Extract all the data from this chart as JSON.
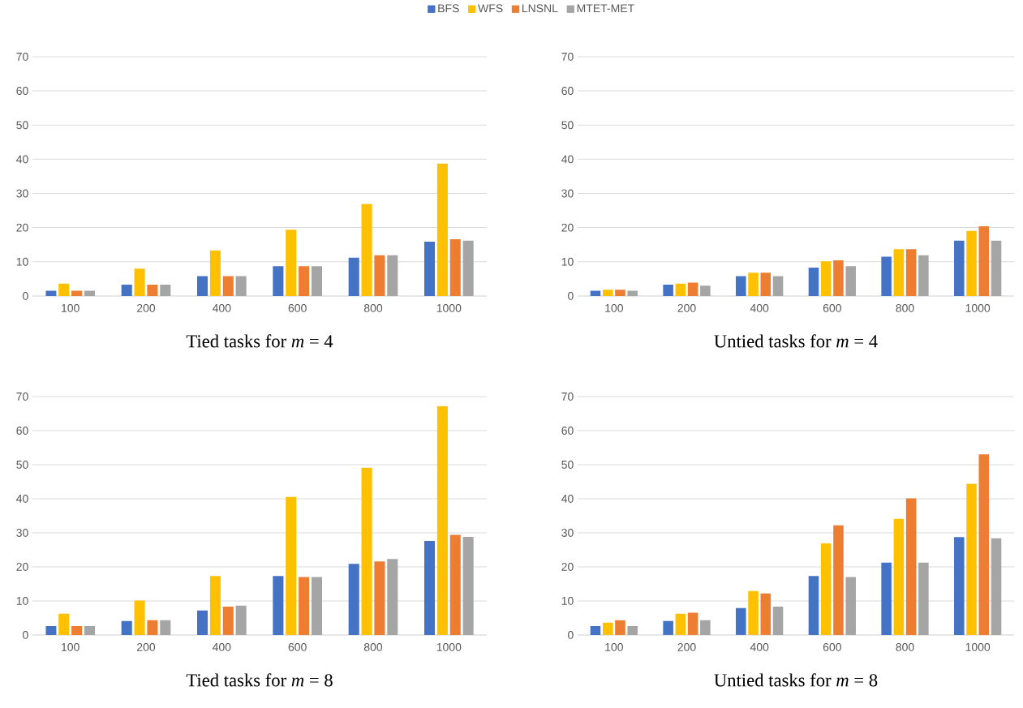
{
  "chart_data": [
    {
      "type": "bar",
      "title": "Tied tasks for *m* = 4",
      "categories": [
        "100",
        "200",
        "400",
        "600",
        "800",
        "1000"
      ],
      "ylim": [
        0,
        70
      ],
      "yticks": [
        0,
        10,
        20,
        30,
        40,
        50,
        60,
        70
      ],
      "grid": "y",
      "legend": "top",
      "series": [
        {
          "name": "BFS",
          "color": "#4472c4",
          "values": [
            1.5,
            3.3,
            5.8,
            8.7,
            11.2,
            15.9
          ]
        },
        {
          "name": "WFS",
          "color": "#ffc000",
          "values": [
            3.6,
            8.0,
            13.3,
            19.4,
            26.9,
            38.7
          ]
        },
        {
          "name": "LNSNL",
          "color": "#ed7d31",
          "values": [
            1.5,
            3.3,
            5.8,
            8.7,
            11.9,
            16.6
          ]
        },
        {
          "name": "MTET-MET",
          "color": "#a5a5a5",
          "values": [
            1.5,
            3.3,
            5.8,
            8.7,
            11.9,
            16.2
          ]
        }
      ]
    },
    {
      "type": "bar",
      "title": "Untied tasks for *m* = 4",
      "categories": [
        "100",
        "200",
        "400",
        "600",
        "800",
        "1000"
      ],
      "ylim": [
        0,
        70
      ],
      "yticks": [
        0,
        10,
        20,
        30,
        40,
        50,
        60,
        70
      ],
      "grid": "y",
      "series": [
        {
          "color": "#4472c4",
          "values": [
            1.5,
            3.3,
            5.8,
            8.3,
            11.5,
            16.2
          ]
        },
        {
          "color": "#ffc000",
          "values": [
            1.8,
            3.6,
            6.8,
            10.1,
            13.7,
            19.0
          ]
        },
        {
          "color": "#ed7d31",
          "values": [
            1.8,
            3.9,
            6.8,
            10.4,
            13.7,
            20.4
          ]
        },
        {
          "color": "#a5a5a5",
          "values": [
            1.5,
            3.0,
            5.8,
            8.7,
            11.9,
            16.2
          ]
        }
      ]
    },
    {
      "type": "bar",
      "title": "Tied tasks for *m* = 8",
      "categories": [
        "100",
        "200",
        "400",
        "600",
        "800",
        "1000"
      ],
      "ylim": [
        0,
        70
      ],
      "yticks": [
        0,
        10,
        20,
        30,
        40,
        50,
        60,
        70
      ],
      "grid": "y",
      "series": [
        {
          "color": "#4472c4",
          "values": [
            2.6,
            4.1,
            7.2,
            17.3,
            20.9,
            27.6
          ]
        },
        {
          "color": "#ffc000",
          "values": [
            6.2,
            10.1,
            17.3,
            40.5,
            49.1,
            67.2
          ]
        },
        {
          "color": "#ed7d31",
          "values": [
            2.6,
            4.3,
            8.3,
            17.0,
            21.6,
            29.4
          ]
        },
        {
          "color": "#a5a5a5",
          "values": [
            2.6,
            4.3,
            8.6,
            17.0,
            22.3,
            28.8
          ]
        }
      ]
    },
    {
      "type": "bar",
      "title": "Untied tasks for *m* = 8",
      "categories": [
        "100",
        "200",
        "400",
        "600",
        "800",
        "1000"
      ],
      "ylim": [
        0,
        70
      ],
      "yticks": [
        0,
        10,
        20,
        30,
        40,
        50,
        60,
        70
      ],
      "grid": "y",
      "series": [
        {
          "color": "#4472c4",
          "values": [
            2.6,
            4.1,
            7.9,
            17.3,
            21.2,
            28.7
          ]
        },
        {
          "color": "#ffc000",
          "values": [
            3.6,
            6.2,
            12.9,
            26.9,
            34.1,
            44.4
          ]
        },
        {
          "color": "#ed7d31",
          "values": [
            4.3,
            6.5,
            12.2,
            32.2,
            40.1,
            53.0
          ]
        },
        {
          "color": "#a5a5a5",
          "values": [
            2.6,
            4.3,
            8.3,
            17.0,
            21.2,
            28.4
          ]
        }
      ]
    }
  ]
}
